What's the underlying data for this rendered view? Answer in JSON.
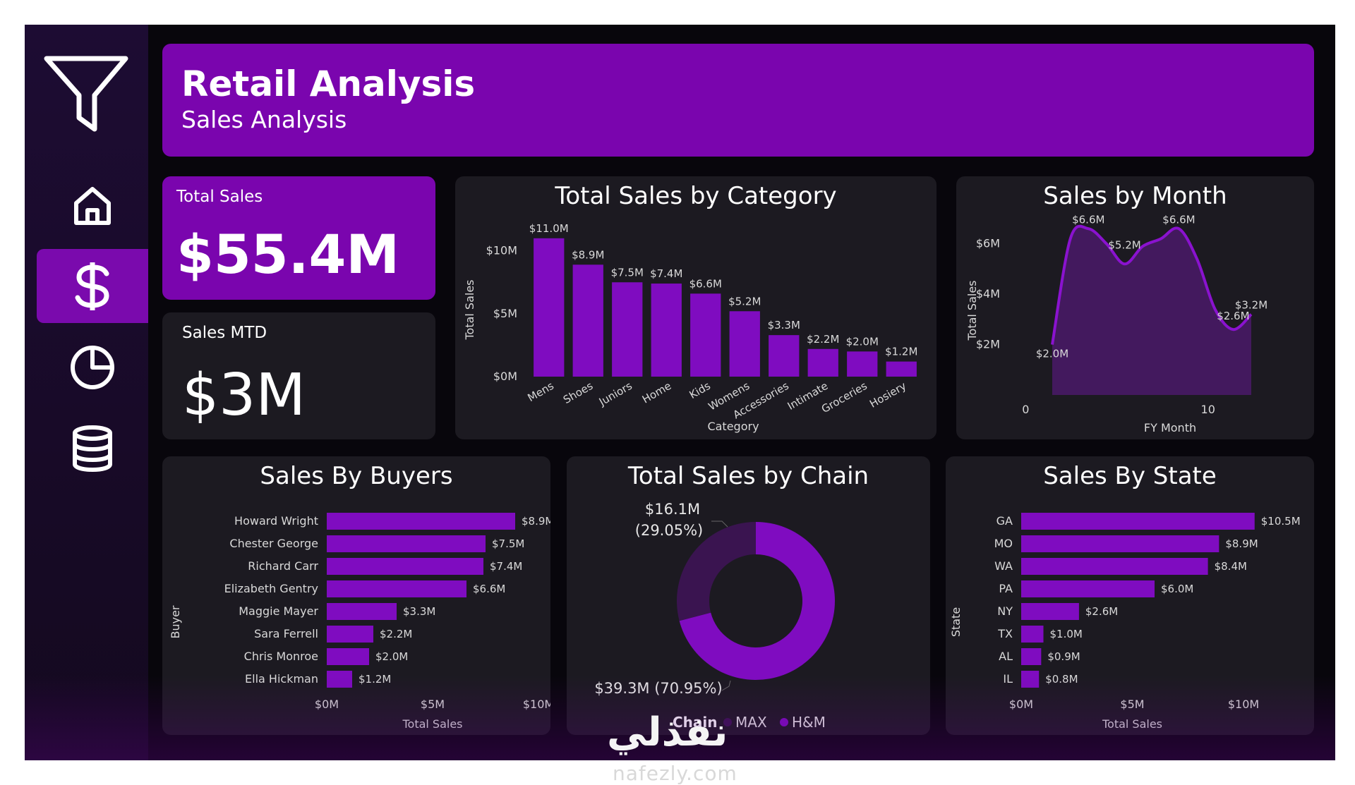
{
  "header": {
    "title": "Retail Analysis",
    "subtitle": "Sales Analysis"
  },
  "sidebar": {
    "items": [
      {
        "icon": "filter-icon"
      },
      {
        "icon": "home-icon"
      },
      {
        "icon": "dollar-icon",
        "active": true
      },
      {
        "icon": "pie-chart-icon"
      },
      {
        "icon": "database-icon"
      }
    ]
  },
  "kpis": {
    "total_sales": {
      "label": "Total Sales",
      "value": "$55.4M"
    },
    "sales_mtd": {
      "label": "Sales MTD",
      "value": "$3M"
    }
  },
  "colors": {
    "accent": "#7a05ae",
    "panel": "#1c1a21",
    "bar": "#7f0cc0",
    "donut_dark": "#3a1450"
  },
  "chart_data": [
    {
      "id": "category",
      "type": "bar",
      "title": "Total Sales by Category",
      "xlabel": "Category",
      "ylabel": "Total Sales",
      "yticks": [
        "$0M",
        "$5M",
        "$10M"
      ],
      "categories": [
        "Mens",
        "Shoes",
        "Juniors",
        "Home",
        "Kids",
        "Womens",
        "Accessories",
        "Intimate",
        "Groceries",
        "Hosiery"
      ],
      "values": [
        11.0,
        8.9,
        7.5,
        7.4,
        6.6,
        5.2,
        3.3,
        2.2,
        2.0,
        1.2
      ],
      "labels": [
        "$11.0M",
        "$8.9M",
        "$7.5M",
        "$7.4M",
        "$6.6M",
        "$5.2M",
        "$3.3M",
        "$2.2M",
        "$2.0M",
        "$1.2M"
      ],
      "ylim": [
        0,
        12
      ]
    },
    {
      "id": "month",
      "type": "area",
      "title": "Sales by Month",
      "xlabel": "FY Month",
      "ylabel": "Total Sales",
      "yticks": [
        "$2M",
        "$4M",
        "$6M"
      ],
      "xticks": [
        "0",
        "10"
      ],
      "x": [
        1,
        2,
        3,
        4,
        5,
        6,
        7,
        8,
        9,
        10,
        11,
        12
      ],
      "values": [
        2.0,
        6.2,
        6.6,
        6.0,
        5.2,
        5.9,
        6.2,
        6.6,
        5.4,
        3.4,
        2.6,
        3.2
      ],
      "point_labels": [
        {
          "index": 0,
          "text": "$2.0M"
        },
        {
          "index": 2,
          "text": "$6.6M"
        },
        {
          "index": 4,
          "text": "$5.2M"
        },
        {
          "index": 7,
          "text": "$6.6M"
        },
        {
          "index": 10,
          "text": "$2.6M"
        },
        {
          "index": 11,
          "text": "$3.2M"
        }
      ],
      "ylim": [
        0,
        7
      ]
    },
    {
      "id": "buyers",
      "type": "bar",
      "orientation": "horizontal",
      "title": "Sales By Buyers",
      "xlabel": "Total Sales",
      "ylabel": "Buyer",
      "xticks": [
        "$0M",
        "$5M",
        "$10M"
      ],
      "categories": [
        "Howard Wright",
        "Chester George",
        "Richard Carr",
        "Elizabeth Gentry",
        "Maggie Mayer",
        "Sara Ferrell",
        "Chris Monroe",
        "Ella Hickman"
      ],
      "values": [
        8.9,
        7.5,
        7.4,
        6.6,
        3.3,
        2.2,
        2.0,
        1.2
      ],
      "labels": [
        "$8.9M",
        "$7.5M",
        "$7.4M",
        "$6.6M",
        "$3.3M",
        "$2.2M",
        "$2.0M",
        "$1.2M"
      ],
      "xlim": [
        0,
        10
      ]
    },
    {
      "id": "chain",
      "type": "pie",
      "title": "Total Sales by Chain",
      "legend_title": "Chain",
      "slices": [
        {
          "name": "MAX",
          "value": 16.1,
          "label": "$16.1M",
          "pct": "(29.05%)"
        },
        {
          "name": "H&M",
          "value": 39.3,
          "label": "$39.3M (70.95%)"
        }
      ]
    },
    {
      "id": "state",
      "type": "bar",
      "orientation": "horizontal",
      "title": "Sales By State",
      "xlabel": "Total Sales",
      "ylabel": "State",
      "xticks": [
        "$0M",
        "$5M",
        "$10M"
      ],
      "categories": [
        "GA",
        "MO",
        "WA",
        "PA",
        "NY",
        "TX",
        "AL",
        "IL"
      ],
      "values": [
        10.5,
        8.9,
        8.4,
        6.0,
        2.6,
        1.0,
        0.9,
        0.8
      ],
      "labels": [
        "$10.5M",
        "$8.9M",
        "$8.4M",
        "$6.0M",
        "$2.6M",
        "$1.0M",
        "$0.9M",
        "$0.8M"
      ],
      "xlim": [
        0,
        10
      ]
    }
  ],
  "watermark": {
    "brand": "نفذلي",
    "url": "nafezly.com"
  }
}
